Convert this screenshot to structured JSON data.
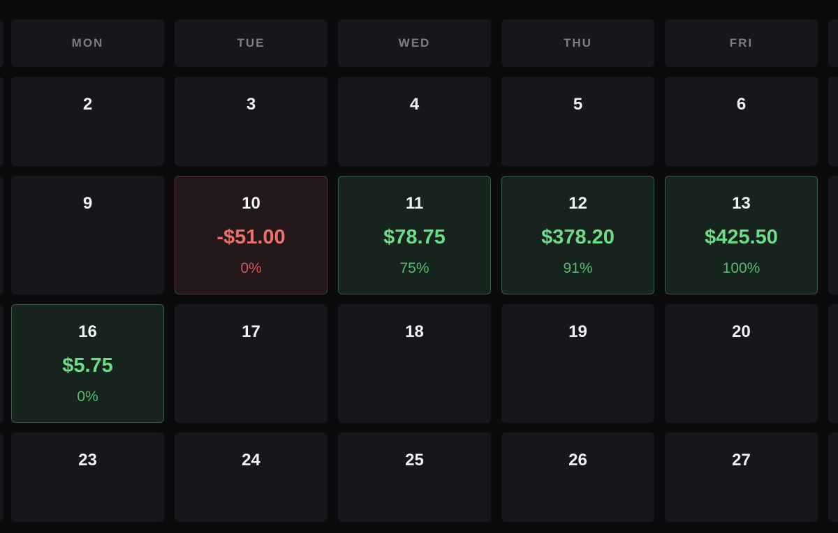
{
  "weekdays": [
    "MON",
    "TUE",
    "WED",
    "THU",
    "FRI"
  ],
  "weeks": [
    [
      {
        "day": "2"
      },
      {
        "day": "3"
      },
      {
        "day": "4"
      },
      {
        "day": "5"
      },
      {
        "day": "6"
      }
    ],
    [
      {
        "day": "9"
      },
      {
        "day": "10",
        "amount": "-$51.00",
        "percent": "0%",
        "status": "loss"
      },
      {
        "day": "11",
        "amount": "$78.75",
        "percent": "75%",
        "status": "profit"
      },
      {
        "day": "12",
        "amount": "$378.20",
        "percent": "91%",
        "status": "profit"
      },
      {
        "day": "13",
        "amount": "$425.50",
        "percent": "100%",
        "status": "profit"
      }
    ],
    [
      {
        "day": "16",
        "amount": "$5.75",
        "percent": "0%",
        "status": "profit"
      },
      {
        "day": "17"
      },
      {
        "day": "18"
      },
      {
        "day": "19"
      },
      {
        "day": "20"
      }
    ],
    [
      {
        "day": "23"
      },
      {
        "day": "24"
      },
      {
        "day": "25"
      },
      {
        "day": "26"
      },
      {
        "day": "27"
      }
    ]
  ],
  "colors": {
    "background": "#0b0b0e",
    "cell": "#17171b",
    "profit_text": "#6fda89",
    "loss_text": "#ec6f6f"
  }
}
